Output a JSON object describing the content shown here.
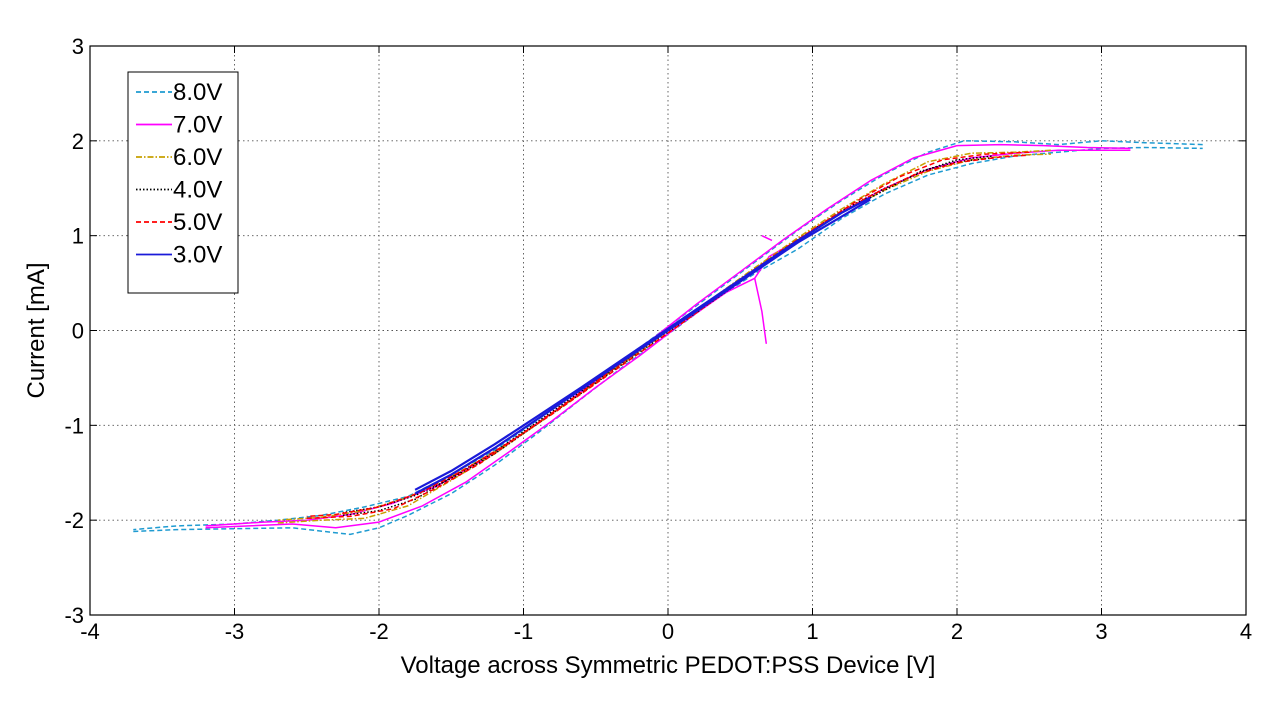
{
  "chart_data": {
    "type": "line",
    "title": "",
    "xlabel": "Voltage across Symmetric PEDOT:PSS Device [V]",
    "ylabel": "Current [mA]",
    "xlim": [
      -4,
      4
    ],
    "ylim": [
      -3,
      3
    ],
    "xticks": [
      -4,
      -3,
      -2,
      -1,
      0,
      1,
      2,
      3,
      4
    ],
    "yticks": [
      -3,
      -2,
      -1,
      0,
      1,
      2,
      3
    ],
    "grid": true,
    "legend_position": "top-left",
    "series": [
      {
        "name": "8.0V",
        "color": "#1f9bd1",
        "dash": "dashed",
        "branches": [
          [
            [
              -3.7,
              -2.12
            ],
            [
              -3.4,
              -2.1
            ],
            [
              -3.0,
              -2.09
            ],
            [
              -2.6,
              -2.08
            ],
            [
              -2.2,
              -2.15
            ],
            [
              -2.0,
              -2.08
            ],
            [
              -1.8,
              -1.95
            ],
            [
              -1.5,
              -1.72
            ],
            [
              -1.2,
              -1.42
            ],
            [
              -0.9,
              -1.08
            ],
            [
              -0.6,
              -0.72
            ],
            [
              -0.3,
              -0.37
            ],
            [
              0.0,
              -0.04
            ],
            [
              0.3,
              0.3
            ],
            [
              0.6,
              0.6
            ],
            [
              0.9,
              0.86
            ],
            [
              1.2,
              1.18
            ],
            [
              1.5,
              1.44
            ],
            [
              1.8,
              1.64
            ],
            [
              2.1,
              1.76
            ],
            [
              2.4,
              1.84
            ],
            [
              2.7,
              1.88
            ],
            [
              3.0,
              1.92
            ],
            [
              3.3,
              1.93
            ],
            [
              3.7,
              1.92
            ]
          ],
          [
            [
              3.7,
              1.96
            ],
            [
              3.3,
              1.98
            ],
            [
              3.0,
              2.0
            ],
            [
              2.7,
              1.96
            ],
            [
              2.4,
              1.99
            ],
            [
              2.05,
              2.0
            ],
            [
              1.8,
              1.88
            ],
            [
              1.5,
              1.65
            ],
            [
              1.2,
              1.37
            ],
            [
              0.9,
              1.06
            ],
            [
              0.6,
              0.72
            ],
            [
              0.3,
              0.38
            ],
            [
              0.0,
              0.04
            ],
            [
              -0.3,
              -0.3
            ],
            [
              -0.6,
              -0.62
            ],
            [
              -0.9,
              -0.94
            ],
            [
              -1.2,
              -1.26
            ],
            [
              -1.5,
              -1.52
            ],
            [
              -1.8,
              -1.75
            ],
            [
              -2.1,
              -1.86
            ],
            [
              -2.4,
              -1.95
            ],
            [
              -2.7,
              -2.0
            ],
            [
              -3.0,
              -2.04
            ],
            [
              -3.4,
              -2.06
            ],
            [
              -3.7,
              -2.1
            ]
          ]
        ]
      },
      {
        "name": "7.0V",
        "color": "#ff00ff",
        "dash": "solid",
        "branches": [
          [
            [
              -3.2,
              -2.08
            ],
            [
              -2.9,
              -2.06
            ],
            [
              -2.6,
              -2.04
            ],
            [
              -2.3,
              -2.08
            ],
            [
              -2.0,
              -2.02
            ],
            [
              -1.7,
              -1.85
            ],
            [
              -1.4,
              -1.6
            ],
            [
              -1.1,
              -1.28
            ],
            [
              -0.8,
              -0.95
            ],
            [
              -0.5,
              -0.6
            ],
            [
              -0.2,
              -0.27
            ],
            [
              0.1,
              0.08
            ],
            [
              0.4,
              0.4
            ],
            [
              0.6,
              0.55
            ],
            [
              0.7,
              0.78
            ],
            [
              0.9,
              0.95
            ],
            [
              1.2,
              1.25
            ],
            [
              1.5,
              1.5
            ],
            [
              1.8,
              1.7
            ],
            [
              2.1,
              1.82
            ],
            [
              2.4,
              1.87
            ],
            [
              2.7,
              1.9
            ],
            [
              3.0,
              1.9
            ],
            [
              3.2,
              1.9
            ]
          ],
          [
            [
              3.2,
              1.92
            ],
            [
              2.9,
              1.93
            ],
            [
              2.6,
              1.95
            ],
            [
              2.3,
              1.96
            ],
            [
              2.0,
              1.95
            ],
            [
              1.7,
              1.82
            ],
            [
              1.4,
              1.58
            ],
            [
              1.1,
              1.28
            ],
            [
              0.8,
              0.96
            ],
            [
              0.5,
              0.62
            ],
            [
              0.2,
              0.28
            ],
            [
              -0.1,
              -0.08
            ],
            [
              -0.4,
              -0.42
            ],
            [
              -0.7,
              -0.76
            ],
            [
              -1.0,
              -1.08
            ],
            [
              -1.3,
              -1.38
            ],
            [
              -1.6,
              -1.64
            ],
            [
              -1.9,
              -1.82
            ],
            [
              -2.2,
              -1.94
            ],
            [
              -2.5,
              -2.0
            ],
            [
              -2.8,
              -2.02
            ],
            [
              -3.2,
              -2.06
            ]
          ],
          [
            [
              0.65,
              1.0
            ],
            [
              0.72,
              0.95
            ]
          ],
          [
            [
              0.6,
              0.55
            ],
            [
              0.65,
              0.2
            ],
            [
              0.68,
              -0.14
            ]
          ]
        ]
      },
      {
        "name": "6.0V",
        "color": "#c8a000",
        "dash": "dashdot",
        "branches": [
          [
            [
              -2.7,
              -2.03
            ],
            [
              -2.4,
              -2.0
            ],
            [
              -2.1,
              -1.98
            ],
            [
              -1.8,
              -1.85
            ],
            [
              -1.5,
              -1.58
            ],
            [
              -1.2,
              -1.3
            ],
            [
              -0.9,
              -0.98
            ],
            [
              -0.6,
              -0.66
            ],
            [
              -0.3,
              -0.33
            ],
            [
              0.0,
              0.0
            ],
            [
              0.3,
              0.33
            ],
            [
              0.6,
              0.66
            ],
            [
              0.9,
              0.96
            ],
            [
              1.2,
              1.24
            ],
            [
              1.5,
              1.48
            ],
            [
              1.8,
              1.68
            ],
            [
              2.1,
              1.8
            ],
            [
              2.4,
              1.85
            ],
            [
              2.65,
              1.86
            ]
          ],
          [
            [
              2.65,
              1.9
            ],
            [
              2.4,
              1.88
            ],
            [
              2.1,
              1.87
            ],
            [
              1.8,
              1.78
            ],
            [
              1.5,
              1.55
            ],
            [
              1.2,
              1.28
            ],
            [
              0.9,
              0.98
            ],
            [
              0.6,
              0.66
            ],
            [
              0.3,
              0.33
            ],
            [
              0.0,
              0.0
            ],
            [
              -0.3,
              -0.33
            ],
            [
              -0.6,
              -0.66
            ],
            [
              -0.9,
              -0.98
            ],
            [
              -1.2,
              -1.28
            ],
            [
              -1.5,
              -1.54
            ],
            [
              -1.8,
              -1.76
            ],
            [
              -2.1,
              -1.9
            ],
            [
              -2.4,
              -1.97
            ],
            [
              -2.7,
              -2.0
            ]
          ]
        ]
      },
      {
        "name": "4.0V",
        "color": "#000000",
        "dash": "dotted",
        "branches": [
          [
            [
              -2.25,
              -1.95
            ],
            [
              -2.0,
              -1.9
            ],
            [
              -1.75,
              -1.78
            ],
            [
              -1.5,
              -1.55
            ],
            [
              -1.2,
              -1.28
            ],
            [
              -0.9,
              -0.96
            ],
            [
              -0.6,
              -0.64
            ],
            [
              -0.3,
              -0.32
            ],
            [
              0.0,
              0.0
            ],
            [
              0.3,
              0.32
            ],
            [
              0.6,
              0.64
            ],
            [
              0.9,
              0.96
            ],
            [
              1.2,
              1.26
            ],
            [
              1.5,
              1.5
            ],
            [
              1.8,
              1.7
            ],
            [
              2.0,
              1.8
            ],
            [
              2.25,
              1.84
            ]
          ],
          [
            [
              2.25,
              1.82
            ],
            [
              2.0,
              1.78
            ],
            [
              1.75,
              1.68
            ],
            [
              1.5,
              1.48
            ],
            [
              1.2,
              1.24
            ],
            [
              0.9,
              0.94
            ],
            [
              0.6,
              0.62
            ],
            [
              0.3,
              0.3
            ],
            [
              0.0,
              -0.02
            ],
            [
              -0.3,
              -0.34
            ],
            [
              -0.6,
              -0.66
            ],
            [
              -0.9,
              -0.98
            ],
            [
              -1.2,
              -1.3
            ],
            [
              -1.5,
              -1.56
            ],
            [
              -1.75,
              -1.74
            ],
            [
              -2.0,
              -1.86
            ],
            [
              -2.25,
              -1.92
            ]
          ]
        ]
      },
      {
        "name": "5.0V",
        "color": "#ff0000",
        "dash": "dashed",
        "branches": [
          [
            [
              -2.5,
              -1.98
            ],
            [
              -2.2,
              -1.96
            ],
            [
              -1.9,
              -1.88
            ],
            [
              -1.6,
              -1.66
            ],
            [
              -1.3,
              -1.4
            ],
            [
              -1.0,
              -1.08
            ],
            [
              -0.7,
              -0.76
            ],
            [
              -0.4,
              -0.43
            ],
            [
              -0.1,
              -0.1
            ],
            [
              0.2,
              0.22
            ],
            [
              0.5,
              0.54
            ],
            [
              0.8,
              0.86
            ],
            [
              1.1,
              1.16
            ],
            [
              1.4,
              1.42
            ],
            [
              1.7,
              1.64
            ],
            [
              2.0,
              1.77
            ],
            [
              2.3,
              1.83
            ],
            [
              2.5,
              1.85
            ]
          ],
          [
            [
              2.5,
              1.88
            ],
            [
              2.2,
              1.86
            ],
            [
              1.9,
              1.8
            ],
            [
              1.6,
              1.62
            ],
            [
              1.3,
              1.36
            ],
            [
              1.0,
              1.06
            ],
            [
              0.7,
              0.74
            ],
            [
              0.4,
              0.41
            ],
            [
              0.1,
              0.08
            ],
            [
              -0.2,
              -0.24
            ],
            [
              -0.5,
              -0.56
            ],
            [
              -0.8,
              -0.88
            ],
            [
              -1.1,
              -1.18
            ],
            [
              -1.4,
              -1.46
            ],
            [
              -1.7,
              -1.7
            ],
            [
              -2.0,
              -1.86
            ],
            [
              -2.3,
              -1.94
            ],
            [
              -2.5,
              -1.96
            ]
          ]
        ]
      },
      {
        "name": "3.0V",
        "color": "#1a1ad9",
        "dash": "solid",
        "branches": [
          [
            [
              -1.75,
              -1.72
            ],
            [
              -1.5,
              -1.52
            ],
            [
              -1.2,
              -1.24
            ],
            [
              -0.9,
              -0.93
            ],
            [
              -0.6,
              -0.62
            ],
            [
              -0.3,
              -0.31
            ],
            [
              0.0,
              0.0
            ],
            [
              0.3,
              0.31
            ],
            [
              0.6,
              0.62
            ],
            [
              0.9,
              0.93
            ],
            [
              1.2,
              1.2
            ],
            [
              1.4,
              1.38
            ]
          ],
          [
            [
              1.4,
              1.4
            ],
            [
              1.2,
              1.24
            ],
            [
              0.9,
              0.95
            ],
            [
              0.6,
              0.64
            ],
            [
              0.3,
              0.33
            ],
            [
              0.0,
              0.02
            ],
            [
              -0.3,
              -0.29
            ],
            [
              -0.6,
              -0.6
            ],
            [
              -0.9,
              -0.9
            ],
            [
              -1.2,
              -1.2
            ],
            [
              -1.5,
              -1.48
            ],
            [
              -1.75,
              -1.68
            ]
          ]
        ]
      }
    ]
  }
}
